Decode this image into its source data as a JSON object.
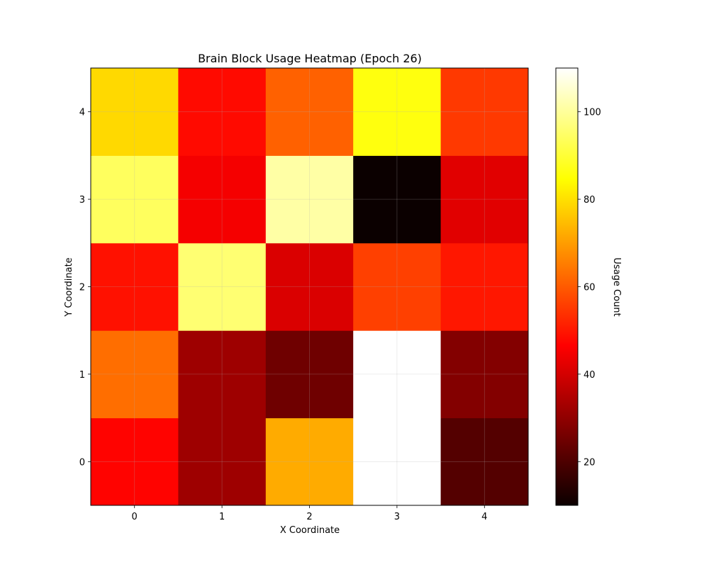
{
  "chart_data": {
    "type": "heatmap",
    "title": "Brain Block Usage Heatmap (Epoch 26)",
    "xlabel": "X Coordinate",
    "ylabel": "Y Coordinate",
    "x_ticks": [
      "0",
      "1",
      "2",
      "3",
      "4"
    ],
    "y_ticks": [
      "0",
      "1",
      "2",
      "3",
      "4"
    ],
    "y_origin": "bottom",
    "colormap": "hot",
    "vmin": 10,
    "vmax": 110,
    "grid": true,
    "colorbar": {
      "label": "Usage Count",
      "ticks": [
        20,
        40,
        60,
        80,
        100
      ],
      "tick_labels": [
        "20",
        "40",
        "60",
        "80",
        "100"
      ]
    },
    "rows_from_y0": [
      [
        47,
        32,
        72,
        110,
        21
      ],
      [
        63,
        32,
        25,
        110,
        28
      ],
      [
        49,
        96,
        41,
        56,
        50
      ],
      [
        94,
        45,
        101,
        10,
        42
      ],
      [
        79,
        48,
        61,
        86,
        55
      ]
    ]
  }
}
